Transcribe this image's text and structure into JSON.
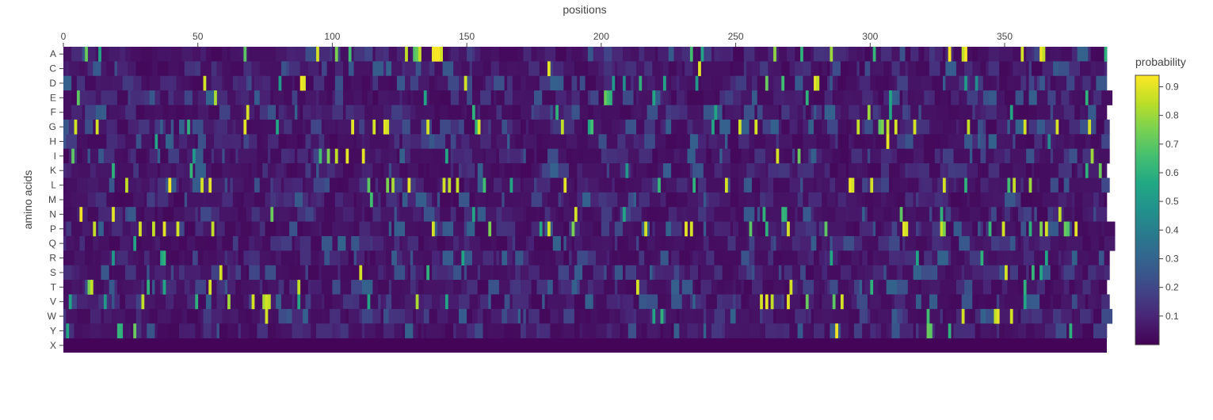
{
  "chart_data": {
    "type": "heatmap",
    "title": "",
    "xlabel": "positions",
    "ylabel": "amino acids",
    "x_axis_position": "top",
    "x_range": [
      0,
      388
    ],
    "x_ticks": [
      0,
      50,
      100,
      150,
      200,
      250,
      300,
      350
    ],
    "y_categories": [
      "A",
      "C",
      "D",
      "E",
      "F",
      "G",
      "H",
      "I",
      "K",
      "L",
      "M",
      "N",
      "P",
      "Q",
      "R",
      "S",
      "T",
      "V",
      "W",
      "Y",
      "X"
    ],
    "colorscale": "viridis",
    "colorbar": {
      "title": "probability",
      "range": [
        0,
        0.94
      ],
      "ticks": [
        0.1,
        0.2,
        0.3,
        0.4,
        0.5,
        0.6,
        0.7,
        0.8,
        0.9
      ]
    },
    "peaks": {
      "A": [
        [
          8,
          0.72
        ],
        [
          13,
          0.55
        ],
        [
          67,
          0.7
        ],
        [
          94,
          0.88
        ],
        [
          101,
          0.75
        ],
        [
          106,
          0.65
        ],
        [
          127,
          0.85
        ],
        [
          130,
          0.68
        ],
        [
          131,
          0.72
        ],
        [
          132,
          0.86
        ],
        [
          137,
          0.92
        ],
        [
          138,
          0.93
        ],
        [
          139,
          0.93
        ],
        [
          140,
          0.88
        ],
        [
          233,
          0.65
        ],
        [
          237,
          0.55
        ],
        [
          264,
          0.78
        ],
        [
          274,
          0.6
        ],
        [
          285,
          0.8
        ],
        [
          301,
          0.62
        ],
        [
          329,
          0.95
        ],
        [
          334,
          0.85
        ],
        [
          335,
          0.93
        ],
        [
          356,
          0.88
        ],
        [
          363,
          0.92
        ],
        [
          364,
          0.85
        ],
        [
          387,
          0.6
        ]
      ],
      "C": [
        [
          180,
          0.9
        ],
        [
          236,
          0.9
        ]
      ],
      "D": [
        [
          52,
          0.88
        ],
        [
          80,
          0.5
        ],
        [
          88,
          0.92
        ],
        [
          89,
          0.9
        ],
        [
          149,
          0.88
        ],
        [
          204,
          0.5
        ],
        [
          208,
          0.45
        ],
        [
          214,
          0.6
        ],
        [
          223,
          0.55
        ],
        [
          235,
          0.5
        ],
        [
          261,
          0.72
        ],
        [
          267,
          0.65
        ],
        [
          279,
          0.9
        ],
        [
          280,
          0.85
        ],
        [
          335,
          0.5
        ],
        [
          339,
          0.45
        ]
      ],
      "E": [
        [
          5,
          0.7
        ],
        [
          56,
          0.82
        ],
        [
          134,
          0.55
        ],
        [
          201,
          0.72
        ],
        [
          202,
          0.65
        ],
        [
          203,
          0.6
        ],
        [
          219,
          0.55
        ],
        [
          276,
          0.6
        ],
        [
          307,
          0.55
        ],
        [
          380,
          0.6
        ]
      ],
      "F": [
        [
          68,
          0.88
        ],
        [
          152,
          0.6
        ],
        [
          183,
          0.6
        ],
        [
          242,
          0.55
        ],
        [
          299,
          0.8
        ],
        [
          307,
          0.55
        ],
        [
          352,
          0.55
        ]
      ],
      "G": [
        [
          4,
          0.88
        ],
        [
          12,
          0.88
        ],
        [
          46,
          0.6
        ],
        [
          67,
          0.9
        ],
        [
          79,
          0.55
        ],
        [
          107,
          0.9
        ],
        [
          115,
          0.88
        ],
        [
          119,
          0.9
        ],
        [
          120,
          0.88
        ],
        [
          135,
          0.88
        ],
        [
          153,
          0.6
        ],
        [
          154,
          0.88
        ],
        [
          185,
          0.85
        ],
        [
          195,
          0.55
        ],
        [
          196,
          0.65
        ],
        [
          241,
          0.55
        ],
        [
          251,
          0.88
        ],
        [
          257,
          0.88
        ],
        [
          295,
          0.85
        ],
        [
          303,
          0.7
        ],
        [
          304,
          0.75
        ],
        [
          306,
          0.85
        ],
        [
          309,
          0.88
        ],
        [
          316,
          0.88
        ],
        [
          336,
          0.85
        ],
        [
          357,
          0.88
        ],
        [
          369,
          0.88
        ],
        [
          381,
          0.88
        ]
      ],
      "H": [
        [
          34,
          0.55
        ],
        [
          306,
          0.9
        ],
        [
          366,
          0.45
        ]
      ],
      "I": [
        [
          3,
          0.7
        ],
        [
          48,
          0.5
        ],
        [
          95,
          0.65
        ],
        [
          98,
          0.75
        ],
        [
          101,
          0.85
        ],
        [
          105,
          0.9
        ],
        [
          111,
          0.9
        ],
        [
          142,
          0.55
        ],
        [
          265,
          0.88
        ],
        [
          273,
          0.72
        ],
        [
          382,
          0.8
        ]
      ],
      "K": [
        [
          18,
          0.6
        ],
        [
          47,
          0.62
        ],
        [
          209,
          0.5
        ],
        [
          380,
          0.6
        ],
        [
          385,
          0.72
        ]
      ],
      "L": [
        [
          23,
          0.85
        ],
        [
          39,
          0.95
        ],
        [
          51,
          0.88
        ],
        [
          54,
          0.9
        ],
        [
          113,
          0.7
        ],
        [
          120,
          0.75
        ],
        [
          122,
          0.82
        ],
        [
          128,
          0.9
        ],
        [
          141,
          0.88
        ],
        [
          143,
          0.85
        ],
        [
          146,
          0.85
        ],
        [
          156,
          0.65
        ],
        [
          166,
          0.55
        ],
        [
          186,
          0.9
        ],
        [
          221,
          0.62
        ],
        [
          234,
          0.6
        ],
        [
          246,
          0.88
        ],
        [
          292,
          0.92
        ],
        [
          293,
          0.88
        ],
        [
          300,
          0.88
        ],
        [
          327,
          0.88
        ],
        [
          335,
          0.6
        ],
        [
          351,
          0.65
        ],
        [
          353,
          0.85
        ],
        [
          359,
          0.8
        ]
      ],
      "M": [
        [
          114,
          0.65
        ]
      ],
      "N": [
        [
          6,
          0.92
        ],
        [
          18,
          0.9
        ],
        [
          77,
          0.72
        ],
        [
          152,
          0.55
        ],
        [
          190,
          0.88
        ],
        [
          208,
          0.55
        ],
        [
          260,
          0.6
        ],
        [
          267,
          0.62
        ],
        [
          268,
          0.6
        ],
        [
          311,
          0.7
        ],
        [
          326,
          0.6
        ],
        [
          370,
          0.85
        ]
      ],
      "P": [
        [
          11,
          0.85
        ],
        [
          28,
          0.88
        ],
        [
          33,
          0.85
        ],
        [
          37,
          0.9
        ],
        [
          42,
          0.88
        ],
        [
          55,
          0.85
        ],
        [
          137,
          0.88
        ],
        [
          158,
          0.75
        ],
        [
          177,
          0.55
        ],
        [
          180,
          0.88
        ],
        [
          189,
          0.75
        ],
        [
          216,
          0.88
        ],
        [
          231,
          0.9
        ],
        [
          233,
          0.88
        ],
        [
          255,
          0.7
        ],
        [
          261,
          0.6
        ],
        [
          269,
          0.88
        ],
        [
          283,
          0.7
        ],
        [
          312,
          0.9
        ],
        [
          313,
          0.88
        ],
        [
          326,
          0.85
        ],
        [
          327,
          0.75
        ],
        [
          344,
          0.62
        ],
        [
          349,
          0.88
        ],
        [
          359,
          0.6
        ],
        [
          363,
          0.75
        ],
        [
          365,
          0.88
        ],
        [
          372,
          0.72
        ],
        [
          373,
          0.68
        ],
        [
          376,
          0.9
        ]
      ],
      "Q": [
        [
          26,
          0.55
        ]
      ],
      "R": [
        [
          18,
          0.5
        ],
        [
          36,
          0.55
        ],
        [
          37,
          0.6
        ],
        [
          148,
          0.55
        ],
        [
          285,
          0.55
        ],
        [
          317,
          0.55
        ],
        [
          341,
          0.6
        ],
        [
          365,
          0.55
        ]
      ],
      "S": [
        [
          58,
          0.88
        ],
        [
          110,
          0.88
        ],
        [
          135,
          0.6
        ],
        [
          350,
          0.88
        ],
        [
          360,
          0.62
        ],
        [
          363,
          0.55
        ]
      ],
      "T": [
        [
          9,
          0.75
        ],
        [
          10,
          0.85
        ],
        [
          31,
          0.6
        ],
        [
          37,
          0.55
        ],
        [
          54,
          0.88
        ],
        [
          87,
          0.85
        ],
        [
          213,
          0.88
        ],
        [
          270,
          0.88
        ],
        [
          300,
          0.6
        ],
        [
          357,
          0.6
        ]
      ],
      "V": [
        [
          2,
          0.55
        ],
        [
          15,
          0.5
        ],
        [
          29,
          0.85
        ],
        [
          49,
          0.6
        ],
        [
          61,
          0.8
        ],
        [
          70,
          0.88
        ],
        [
          74,
          0.82
        ],
        [
          75,
          0.88
        ],
        [
          76,
          0.85
        ],
        [
          87,
          0.55
        ],
        [
          113,
          0.55
        ],
        [
          131,
          0.82
        ],
        [
          142,
          0.55
        ],
        [
          259,
          0.88
        ],
        [
          261,
          0.9
        ],
        [
          263,
          0.85
        ],
        [
          269,
          0.9
        ],
        [
          276,
          0.72
        ],
        [
          286,
          0.7
        ],
        [
          289,
          0.88
        ],
        [
          357,
          0.55
        ]
      ],
      "W": [
        [
          75,
          0.88
        ],
        [
          219,
          0.55
        ],
        [
          222,
          0.6
        ],
        [
          321,
          0.65
        ],
        [
          334,
          0.88
        ],
        [
          346,
          0.85
        ],
        [
          347,
          0.9
        ],
        [
          352,
          0.88
        ]
      ],
      "Y": [
        [
          1,
          0.55
        ],
        [
          20,
          0.62
        ],
        [
          21,
          0.6
        ],
        [
          26,
          0.72
        ],
        [
          287,
          0.92
        ],
        [
          321,
          0.72
        ],
        [
          322,
          0.7
        ],
        [
          329,
          0.6
        ],
        [
          374,
          0.6
        ]
      ],
      "X": []
    }
  }
}
